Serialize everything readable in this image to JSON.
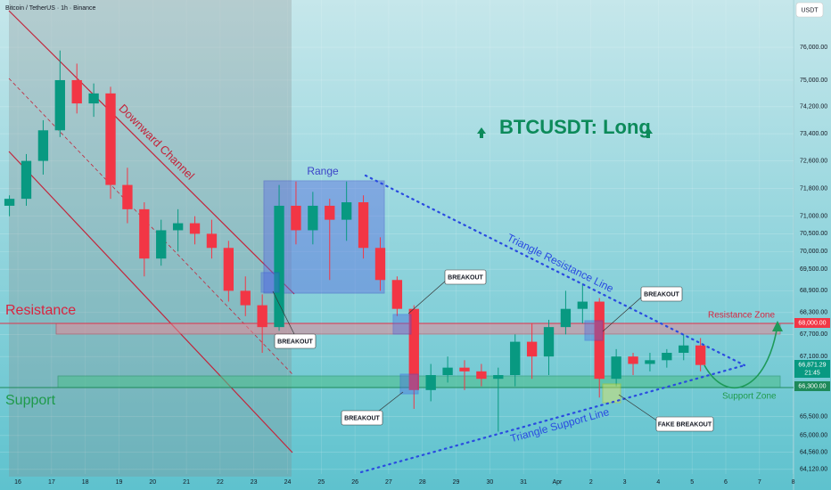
{
  "chart_data": {
    "type": "candlestick",
    "title": "Bitcoin / TetherUS · 1h · Binance",
    "currency": "USDT",
    "headline": "BTCUSDT: Long",
    "log_scale": true,
    "grid": true,
    "up_color": "#089981",
    "down_color": "#f23645",
    "xlim": [
      15.47,
      39.01
    ],
    "xticks": [
      16,
      17,
      18,
      19,
      20,
      21,
      22,
      23,
      24,
      25,
      26,
      27,
      28,
      29,
      30,
      31,
      {
        "value": 32,
        "label": "Apr"
      },
      {
        "value": 33,
        "label": "2"
      },
      {
        "value": 34,
        "label": "3"
      },
      {
        "value": 35,
        "label": "4"
      },
      {
        "value": 36,
        "label": "5"
      },
      {
        "value": 37,
        "label": "6"
      },
      {
        "value": 38,
        "label": "7"
      },
      {
        "value": 39,
        "label": "8"
      }
    ],
    "ylim": [
      64000,
      77460
    ],
    "yticks": [
      {
        "value": 76000,
        "label": "76,000.00"
      },
      {
        "value": 75000,
        "label": "75,000.00"
      },
      {
        "value": 74200,
        "label": "74,200.00"
      },
      {
        "value": 73400,
        "label": "73,400.00"
      },
      {
        "value": 72600,
        "label": "72,600.00"
      },
      {
        "value": 71800,
        "label": "71,800.00"
      },
      {
        "value": 71000,
        "label": "71,000.00"
      },
      {
        "value": 70500,
        "label": "70,500.00"
      },
      {
        "value": 70000,
        "label": "70,000.00"
      },
      {
        "value": 69500,
        "label": "69,500.00"
      },
      {
        "value": 68900,
        "label": "68,900.00"
      },
      {
        "value": 68300,
        "label": "68,300.00"
      },
      {
        "value": 67700,
        "label": "67,700.00"
      },
      {
        "value": 67100,
        "label": "67,100.00"
      },
      {
        "value": 65500,
        "label": "65,500.00"
      },
      {
        "value": 65000,
        "label": "65,000.00"
      },
      {
        "value": 64560,
        "label": "64,560.00"
      },
      {
        "value": 64120,
        "label": "64,120.00"
      }
    ],
    "x": [
      15.75,
      16.25,
      16.75,
      17.25,
      17.75,
      18.25,
      18.75,
      19.25,
      19.75,
      20.25,
      20.75,
      21.25,
      21.75,
      22.25,
      22.75,
      23.25,
      23.75,
      24.25,
      24.75,
      25.25,
      25.75,
      26.25,
      26.75,
      27.25,
      27.75,
      28.25,
      28.75,
      29.25,
      29.75,
      30.25,
      30.75,
      31.25,
      31.75,
      32.25,
      32.75,
      33.25,
      33.75,
      34.25,
      34.75,
      35.25,
      35.75,
      36.25
    ],
    "open": [
      71300,
      71500,
      72600,
      73500,
      75000,
      74300,
      74600,
      71900,
      71200,
      69800,
      70600,
      70800,
      70500,
      70100,
      68900,
      68500,
      67900,
      71300,
      70600,
      71300,
      70900,
      71400,
      70100,
      69200,
      68400,
      66200,
      66600,
      66800,
      66700,
      66500,
      66600,
      67500,
      67100,
      67900,
      68400,
      68600,
      66500,
      67100,
      66900,
      67000,
      67200,
      67400
    ],
    "high": [
      71600,
      72800,
      73800,
      75900,
      75500,
      74900,
      74800,
      72400,
      71400,
      70900,
      71200,
      71000,
      70900,
      70300,
      69300,
      68800,
      71900,
      72000,
      71700,
      71500,
      72000,
      71600,
      70400,
      69300,
      68500,
      66900,
      67100,
      67000,
      66900,
      66800,
      67700,
      68000,
      68100,
      68900,
      69100,
      68700,
      67300,
      67200,
      67200,
      67300,
      67700,
      67600
    ],
    "low": [
      71000,
      71300,
      72200,
      73300,
      74000,
      73900,
      71500,
      70800,
      69300,
      69600,
      70000,
      70200,
      69800,
      68600,
      68200,
      67200,
      67800,
      70200,
      70200,
      69200,
      70300,
      69800,
      68900,
      68200,
      65700,
      65900,
      66400,
      66200,
      66300,
      65100,
      66300,
      66500,
      66600,
      67700,
      68000,
      66000,
      66300,
      66600,
      66700,
      66800,
      67000,
      66700
    ],
    "close": [
      71500,
      72600,
      73500,
      75000,
      74300,
      74600,
      71900,
      71200,
      69800,
      70600,
      70800,
      70500,
      70100,
      68900,
      68500,
      67900,
      71300,
      70600,
      71300,
      70900,
      71400,
      70100,
      69200,
      68400,
      66200,
      66600,
      66800,
      66700,
      66500,
      66600,
      67500,
      67100,
      67900,
      68400,
      68600,
      66500,
      67100,
      66900,
      67000,
      67200,
      67400,
      66871.29
    ],
    "annotations": {
      "downward_channel": "Downward Channel",
      "range": "Range",
      "triangle_resistance": "Triangle Resistance Line",
      "triangle_support": "Triangle Support Line",
      "breakouts": [
        "BREAKOUT",
        "BREAKOUT",
        "BREAKOUT"
      ],
      "fake_breakout": "FAKE BREAKOUT",
      "resistance": "Resistance",
      "support": "Support",
      "resistance_zone": "Resistance Zone",
      "support_zone": "Support Zone",
      "resistance_price": "68,000.00",
      "support_price": "66,300.00",
      "last_price": "66,871.29",
      "countdown": "21:45"
    }
  }
}
